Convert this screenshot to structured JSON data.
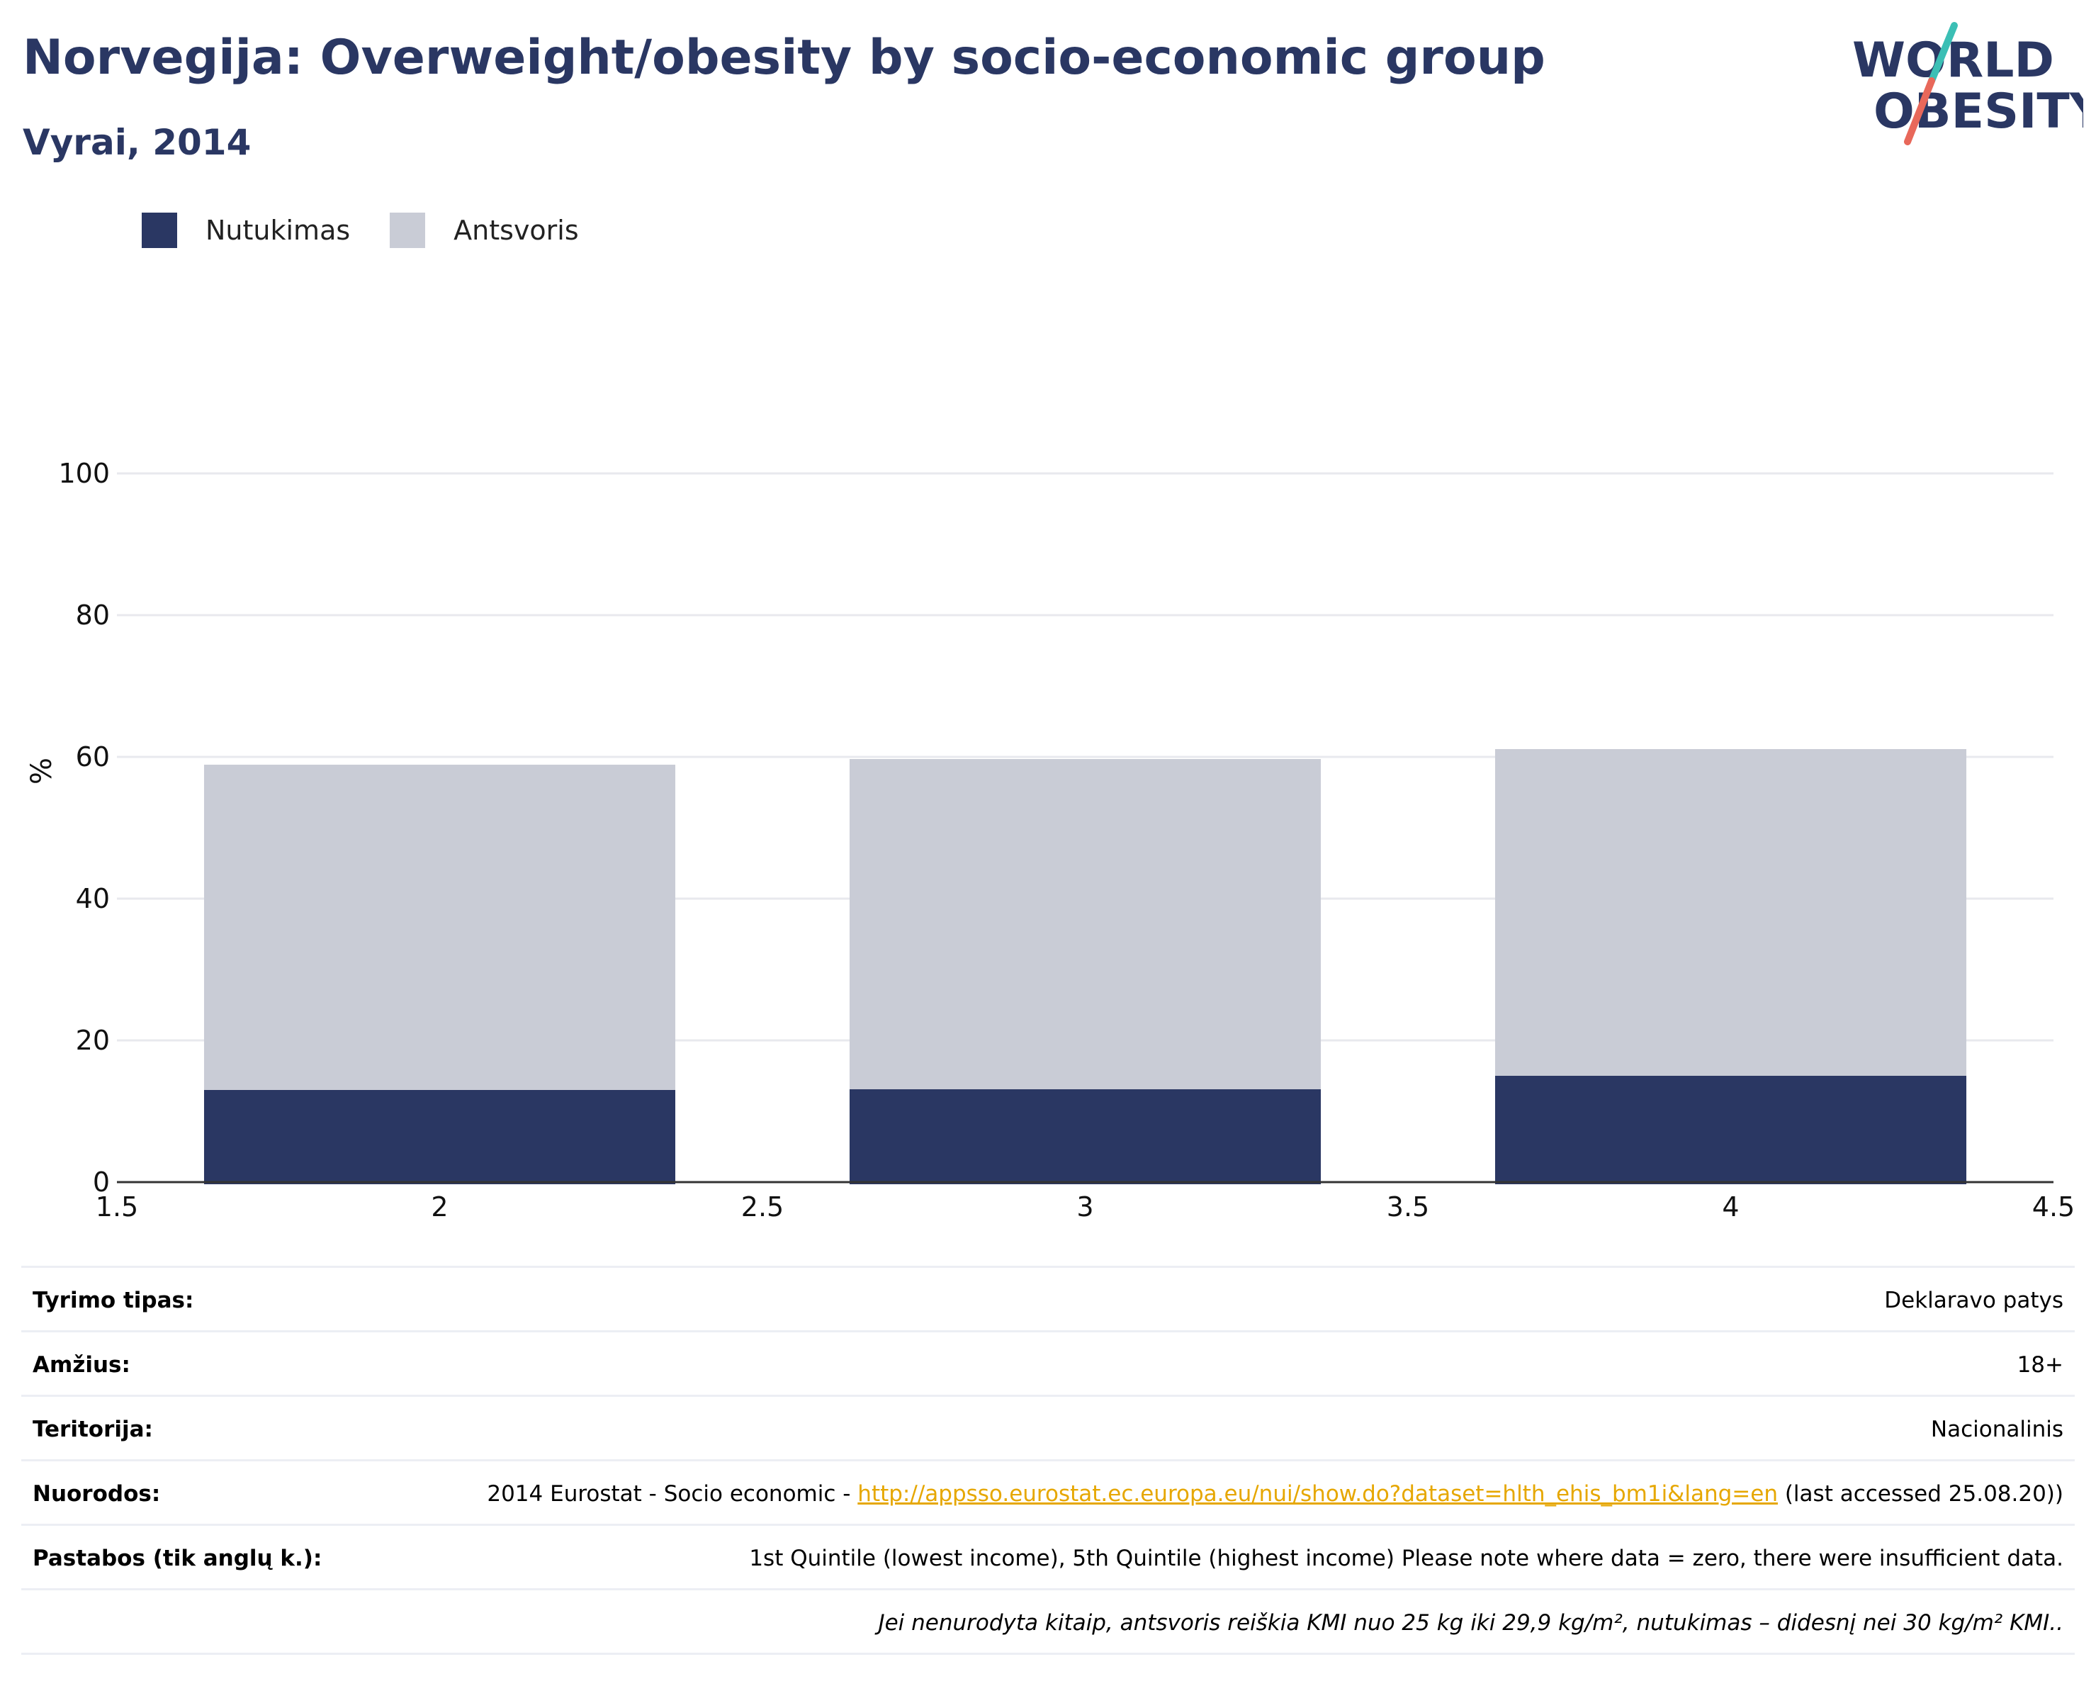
{
  "header": {
    "title": "Norvegija: Overweight/obesity by socio-economic group",
    "subtitle": "Vyrai, 2014"
  },
  "logo": {
    "line1": "WORLD",
    "line2": "OBESITY",
    "colors": {
      "text": "#2a3763",
      "slash_teal": "#3bbfb5",
      "slash_red": "#e8685a"
    }
  },
  "legend": [
    {
      "label": "Nutukimas",
      "color": "#2a3763"
    },
    {
      "label": "Antsvoris",
      "color": "#c9ccd6"
    }
  ],
  "chart_data": {
    "type": "bar",
    "stacked": true,
    "x": [
      2,
      3,
      4
    ],
    "series": [
      {
        "name": "Nutukimas",
        "color": "#2a3763",
        "values": [
          13,
          13.1,
          15
        ]
      },
      {
        "name": "Antsvoris",
        "color": "#c9ccd6",
        "values": [
          45.9,
          46.6,
          46.1
        ]
      }
    ],
    "xlim": [
      1.5,
      4.5
    ],
    "xticks": [
      1.5,
      2,
      2.5,
      3,
      3.5,
      4,
      4.5
    ],
    "xtick_labels": [
      "1.5",
      "2",
      "2.5",
      "3",
      "3.5",
      "4",
      "4.5"
    ],
    "ylim": [
      0,
      100
    ],
    "yticks": [
      0,
      20,
      40,
      60,
      80,
      100
    ],
    "ytick_labels": [
      "0",
      "20",
      "40",
      "60",
      "80",
      "100"
    ],
    "ylabel": "%",
    "xlabel": "",
    "grid": true,
    "legend_position": "top-left"
  },
  "info": {
    "survey_type": {
      "label": "Tyrimo tipas:",
      "value": "Deklaravo patys"
    },
    "age": {
      "label": "Amžius:",
      "value": "18+"
    },
    "territory": {
      "label": "Teritorija:",
      "value": "Nacionalinis"
    },
    "references": {
      "label": "Nuorodos:",
      "prefix": "2014 Eurostat - Socio economic - ",
      "link": "http://appsso.eurostat.ec.europa.eu/nui/show.do?dataset=hlth_ehis_bm1i&lang=en",
      "suffix": " (last accessed 25.08.20))"
    },
    "notes": {
      "label": "Pastabos (tik anglų k.):",
      "value": "1st Quintile (lowest income), 5th Quintile (highest income) Please note where data = zero, there were insufficient data."
    },
    "definition": "Jei nenurodyta kitaip, antsvoris reiškia KMI nuo 25 kg iki 29,9 kg/m², nutukimas – didesnį nei 30 kg/m² KMI.."
  }
}
